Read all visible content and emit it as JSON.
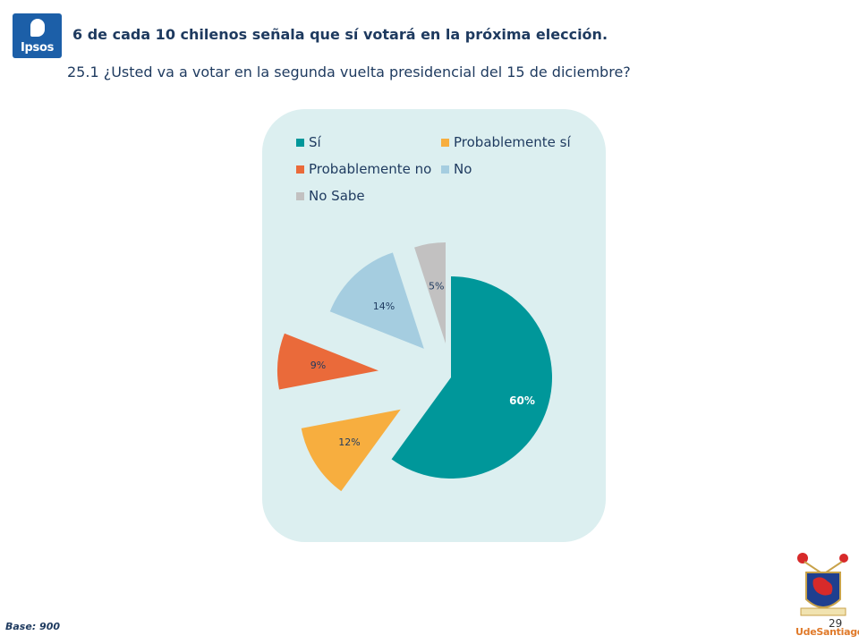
{
  "brand": {
    "logo_text": "Ipsos",
    "logo_color": "#1c5fa8"
  },
  "header": {
    "headline": "6 de cada 10 chilenos señala que sí votará en la próxima elección.",
    "question": "25.1 ¿Usted va a votar en la segunda vuelta presidencial del 15 de diciembre?"
  },
  "chart_data": {
    "type": "pie",
    "title": "",
    "exploded": true,
    "start_angle_deg": 0,
    "direction": "clockwise",
    "legend_position": "top",
    "categories": [
      "Sí",
      "Probablemente sí",
      "Probablemente no",
      "No",
      "No Sabe"
    ],
    "values": [
      60,
      12,
      9,
      14,
      5
    ],
    "data_labels": [
      "60%",
      "12%",
      "9%",
      "14%",
      "5%"
    ],
    "colors": [
      "#00979a",
      "#f7ae3f",
      "#ea6a3a",
      "#a5cde0",
      "#c2c1c1"
    ]
  },
  "footer": {
    "base": "Base: 900",
    "page_number": "29",
    "university_logo_text": "UdeSantiago"
  }
}
